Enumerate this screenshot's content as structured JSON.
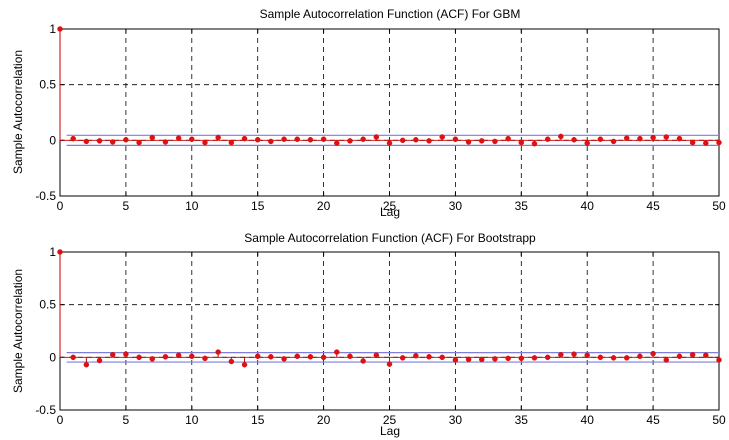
{
  "chart_data": [
    {
      "type": "stem",
      "title": "Sample Autocorrelation Function (ACF) For GBM",
      "xlabel": "Lag",
      "ylabel": "Sample Autocorrelation",
      "xlim": [
        0,
        50
      ],
      "ylim": [
        -0.5,
        1
      ],
      "xticks": [
        0,
        5,
        10,
        15,
        20,
        25,
        30,
        35,
        40,
        45,
        50
      ],
      "yticks": [
        -0.5,
        0,
        0.5,
        1
      ],
      "xtick_labels": [
        "0",
        "5",
        "10",
        "15",
        "20",
        "25",
        "30",
        "35",
        "40",
        "45",
        "50"
      ],
      "ytick_labels": [
        "-0.5",
        "0",
        "0.5",
        "1"
      ],
      "grid": true,
      "confidence_bounds": [
        0.045,
        -0.045
      ],
      "x": [
        0,
        1,
        2,
        3,
        4,
        5,
        6,
        7,
        8,
        9,
        10,
        11,
        12,
        13,
        14,
        15,
        16,
        17,
        18,
        19,
        20,
        21,
        22,
        23,
        24,
        25,
        26,
        27,
        28,
        29,
        30,
        31,
        32,
        33,
        34,
        35,
        36,
        37,
        38,
        39,
        40,
        41,
        42,
        43,
        44,
        45,
        46,
        47,
        48,
        49,
        50
      ],
      "values": [
        1.0,
        0.015,
        -0.01,
        -0.005,
        -0.015,
        0.005,
        -0.02,
        0.025,
        -0.015,
        0.02,
        0.01,
        -0.02,
        0.025,
        -0.02,
        0.015,
        0.005,
        -0.01,
        0.01,
        0.01,
        0.005,
        0.01,
        -0.025,
        -0.005,
        0.01,
        0.03,
        -0.025,
        0.0,
        0.005,
        -0.005,
        0.03,
        0.01,
        -0.015,
        -0.005,
        -0.01,
        0.015,
        -0.02,
        -0.03,
        0.01,
        0.035,
        0.005,
        -0.025,
        0.01,
        -0.01,
        0.02,
        0.015,
        0.025,
        0.03,
        0.015,
        -0.02,
        -0.025,
        -0.02
      ],
      "colors": {
        "stem": "#cc0000",
        "marker": "#dd1111",
        "bounds": "#7f7fd9",
        "zero": "#cc0000",
        "grid": "#000000"
      }
    },
    {
      "type": "stem",
      "title": "Sample Autocorrelation Function (ACF) For Bootstrapp",
      "xlabel": "Lag",
      "ylabel": "Sample Autocorrelation",
      "xlim": [
        0,
        50
      ],
      "ylim": [
        -0.5,
        1
      ],
      "xticks": [
        0,
        5,
        10,
        15,
        20,
        25,
        30,
        35,
        40,
        45,
        50
      ],
      "yticks": [
        -0.5,
        0,
        0.5,
        1
      ],
      "xtick_labels": [
        "0",
        "5",
        "10",
        "15",
        "20",
        "25",
        "30",
        "35",
        "40",
        "45",
        "50"
      ],
      "ytick_labels": [
        "-0.5",
        "0",
        "0.5",
        "1"
      ],
      "grid": true,
      "confidence_bounds": [
        0.045,
        -0.045
      ],
      "x": [
        0,
        1,
        2,
        3,
        4,
        5,
        6,
        7,
        8,
        9,
        10,
        11,
        12,
        13,
        14,
        15,
        16,
        17,
        18,
        19,
        20,
        21,
        22,
        23,
        24,
        25,
        26,
        27,
        28,
        29,
        30,
        31,
        32,
        33,
        34,
        35,
        36,
        37,
        38,
        39,
        40,
        41,
        42,
        43,
        44,
        45,
        46,
        47,
        48,
        49,
        50
      ],
      "values": [
        1.0,
        0.0,
        -0.07,
        -0.03,
        0.025,
        0.03,
        0.0,
        -0.015,
        0.005,
        0.02,
        0.01,
        -0.01,
        0.05,
        -0.04,
        -0.07,
        0.01,
        0.005,
        -0.015,
        0.01,
        0.005,
        0.0,
        0.05,
        0.01,
        -0.035,
        0.02,
        -0.065,
        -0.005,
        0.015,
        0.005,
        0.0,
        -0.025,
        -0.02,
        -0.02,
        -0.015,
        -0.01,
        -0.01,
        -0.005,
        0.0,
        0.025,
        0.03,
        0.02,
        0.0,
        -0.005,
        -0.005,
        0.01,
        0.035,
        -0.025,
        0.01,
        0.025,
        0.02,
        -0.025
      ],
      "colors": {
        "stem": "#cc0000",
        "marker": "#dd1111",
        "bounds": "#7f7fd9",
        "zero": "#cc0000",
        "grid": "#000000"
      }
    }
  ]
}
